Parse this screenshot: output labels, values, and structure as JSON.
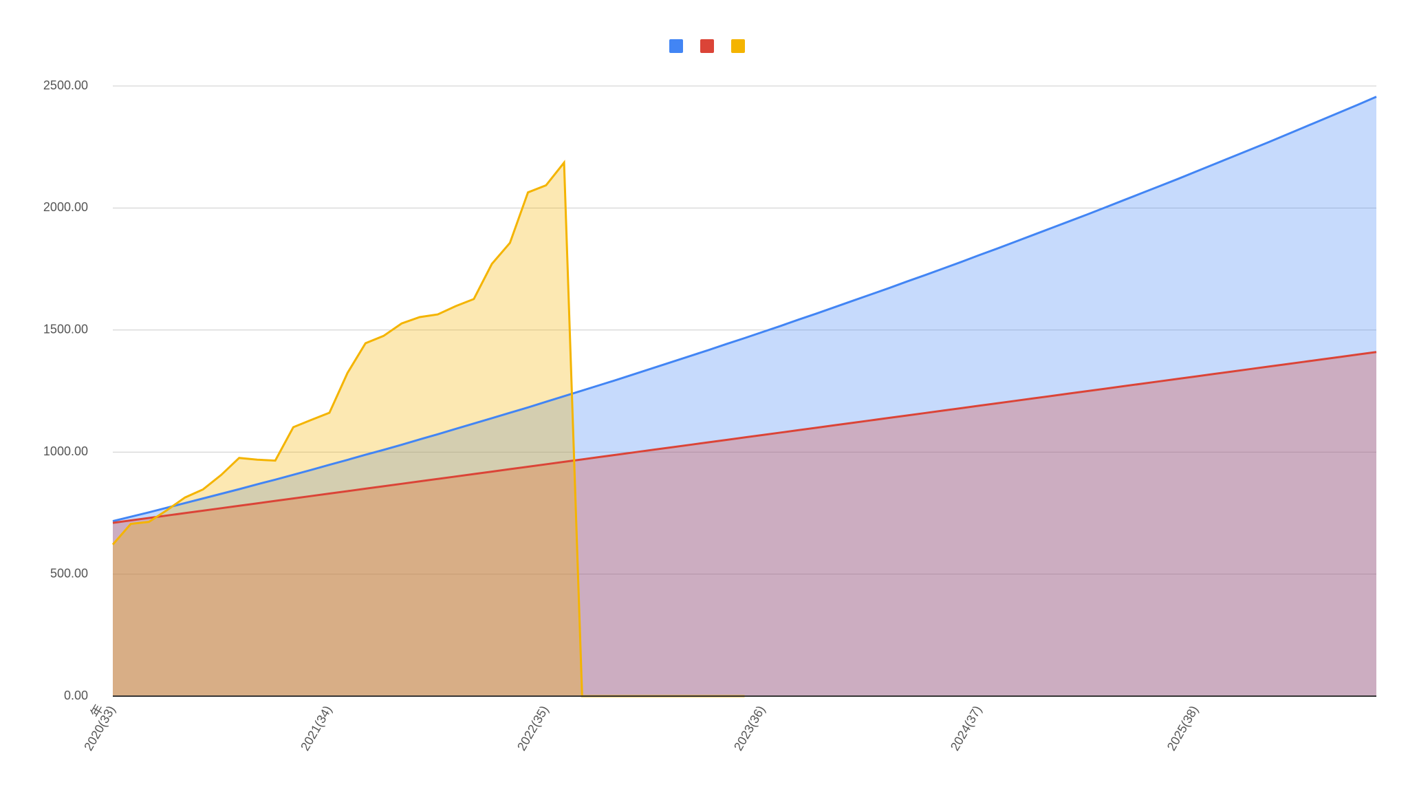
{
  "chart_data": {
    "type": "area",
    "x_label": "年",
    "categories": [
      "2020(33)",
      null,
      null,
      null,
      null,
      null,
      null,
      null,
      null,
      null,
      null,
      null,
      "2021(34)",
      null,
      null,
      null,
      null,
      null,
      null,
      null,
      null,
      null,
      null,
      null,
      "2022(35)",
      null,
      null,
      null,
      null,
      null,
      null,
      null,
      null,
      null,
      null,
      null,
      "2023(36)",
      null,
      null,
      null,
      null,
      null,
      null,
      null,
      null,
      null,
      null,
      null,
      "2024(37)",
      null,
      null,
      null,
      null,
      null,
      null,
      null,
      null,
      null,
      null,
      null,
      "2025(38)",
      null,
      null,
      null,
      null,
      null,
      null,
      null,
      null,
      null,
      null
    ],
    "series": [
      {
        "color": "#4285f4",
        "values": [
          717,
          735,
          753,
          772,
          791,
          810,
          829,
          848,
          868,
          887,
          907,
          927,
          948,
          968,
          989,
          1009,
          1030,
          1052,
          1073,
          1095,
          1117,
          1139,
          1161,
          1183,
          1206,
          1229,
          1252,
          1275,
          1298,
          1322,
          1346,
          1370,
          1394,
          1418,
          1443,
          1467,
          1492,
          1517,
          1543,
          1568,
          1594,
          1620,
          1646,
          1672,
          1699,
          1725,
          1752,
          1779,
          1807,
          1834,
          1862,
          1890,
          1918,
          1946,
          1974,
          2003,
          2032,
          2061,
          2090,
          2119,
          2149,
          2179,
          2209,
          2239,
          2269,
          2300,
          2331,
          2362,
          2393,
          2424,
          2456
        ]
      },
      {
        "color": "#db4437",
        "values": [
          710,
          720,
          730,
          740,
          750,
          760,
          770,
          780,
          790,
          800,
          810,
          820,
          830,
          840,
          850,
          860,
          870,
          880,
          890,
          900,
          910,
          920,
          930,
          940,
          950,
          960,
          970,
          980,
          990,
          1000,
          1010,
          1020,
          1030,
          1040,
          1050,
          1060,
          1070,
          1080,
          1090,
          1100,
          1110,
          1120,
          1130,
          1140,
          1150,
          1160,
          1170,
          1180,
          1190,
          1200,
          1210,
          1220,
          1230,
          1240,
          1250,
          1260,
          1270,
          1280,
          1290,
          1300,
          1310,
          1320,
          1330,
          1340,
          1350,
          1360,
          1370,
          1380,
          1390,
          1400,
          1410
        ]
      },
      {
        "color": "#f4b400",
        "values": [
          621,
          706,
          714,
          762,
          814,
          847,
          906,
          976,
          969,
          965,
          1102,
          1132,
          1161,
          1324,
          1446,
          1476,
          1527,
          1553,
          1564,
          1598,
          1627,
          1771,
          1857,
          2064,
          2093,
          2186,
          0,
          0,
          0,
          0,
          0,
          0,
          0,
          0,
          0,
          0,
          null,
          null,
          null,
          null,
          null,
          null,
          null,
          null,
          null,
          null,
          null,
          null,
          null,
          null,
          null,
          null,
          null,
          null,
          null,
          null,
          null,
          null,
          null,
          null,
          null,
          null,
          null,
          null,
          null,
          null,
          null,
          null,
          null,
          null,
          null
        ]
      }
    ],
    "ylim": [
      0,
      2500
    ],
    "yticks": [
      {
        "value": 0,
        "label": "0.00"
      },
      {
        "value": 500,
        "label": "500.00"
      },
      {
        "value": 1000,
        "label": "1000.00"
      },
      {
        "value": 1500,
        "label": "1500.00"
      },
      {
        "value": 2000,
        "label": "2000.00"
      },
      {
        "value": 2500,
        "label": "2500.00"
      }
    ],
    "grid": true,
    "legend": "top",
    "fill_opacity": 0.3
  }
}
